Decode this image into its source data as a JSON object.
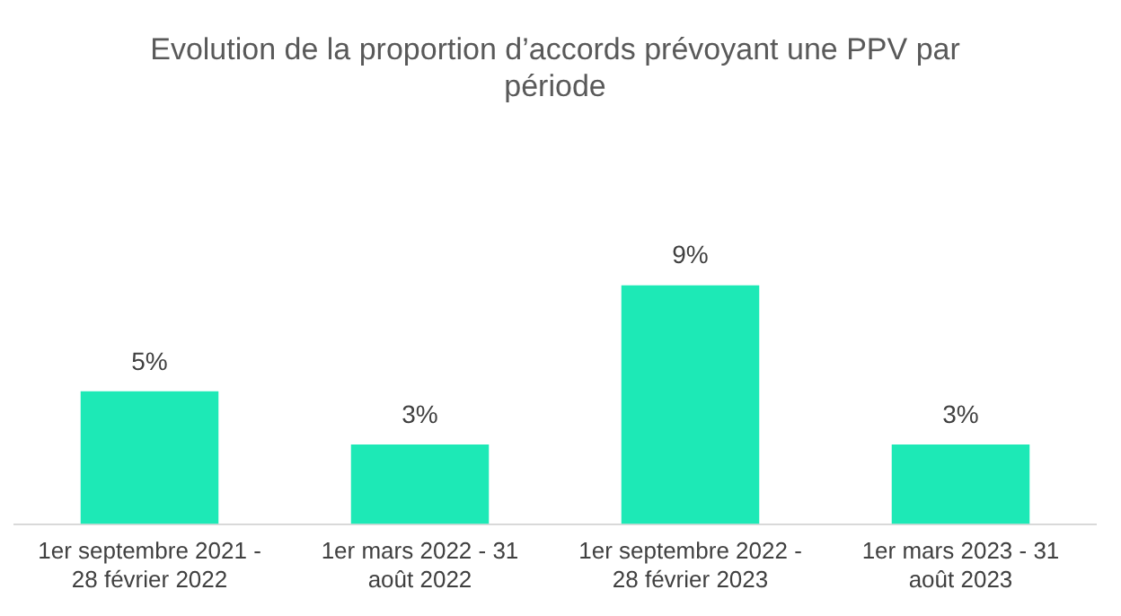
{
  "chart_data": {
    "type": "bar",
    "title": "Evolution de la proportion d’accords prévoyant une PPV par période",
    "categories": [
      "1er septembre 2021 - 28 février 2022",
      "1er mars 2022 - 31 août 2022",
      "1er septembre 2022 - 28 février 2023",
      "1er mars 2023 - 31 août 2023"
    ],
    "values": [
      5,
      3,
      9,
      3
    ],
    "value_labels": [
      "5%",
      "3%",
      "9%",
      "3%"
    ],
    "color": "#1de9b6",
    "grid": false,
    "legend": false
  }
}
